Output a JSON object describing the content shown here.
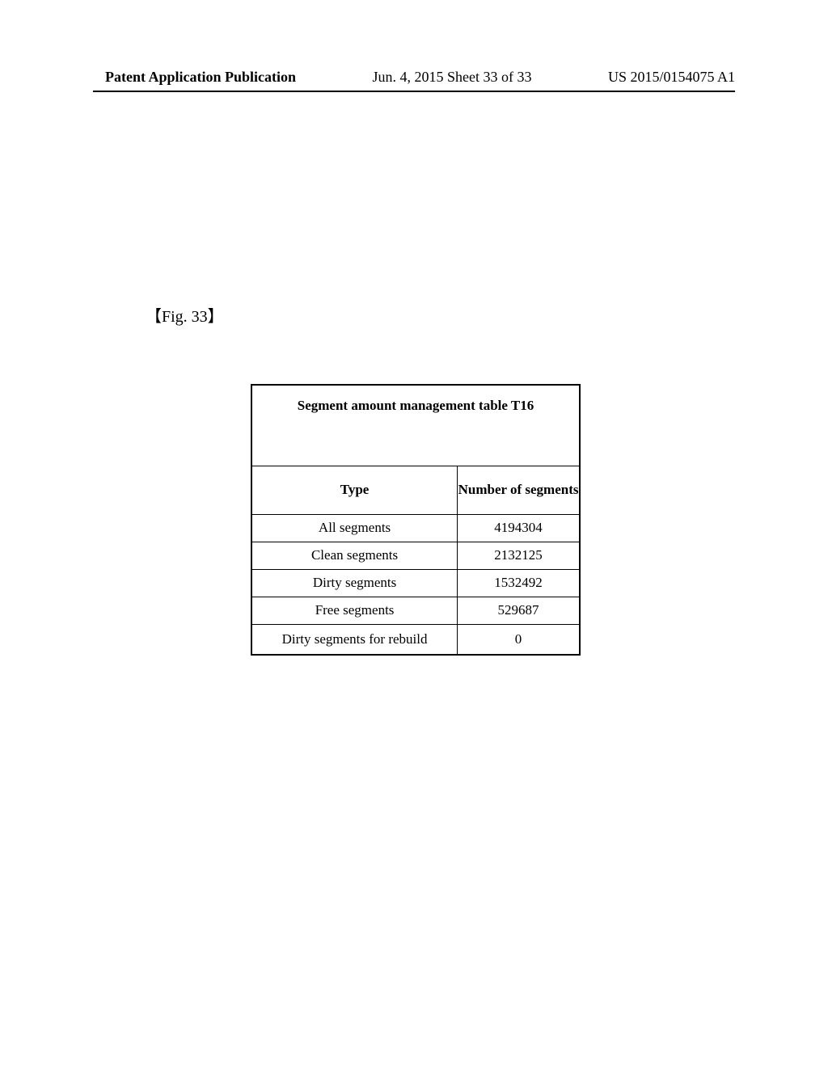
{
  "header": {
    "left": "Patent Application Publication",
    "center": "Jun. 4, 2015  Sheet 33 of 33",
    "right": "US 2015/0154075 A1"
  },
  "figure_label": "【Fig. 33】",
  "table": {
    "title": "Segment amount management table T16",
    "columns": {
      "type": "Type",
      "number": "Number of segments"
    },
    "rows": [
      {
        "type": "All segments",
        "number": "4194304"
      },
      {
        "type": "Clean segments",
        "number": "2132125"
      },
      {
        "type": "Dirty segments",
        "number": "1532492"
      },
      {
        "type": "Free segments",
        "number": "529687"
      },
      {
        "type": "Dirty segments for rebuild",
        "number": "0"
      }
    ]
  }
}
